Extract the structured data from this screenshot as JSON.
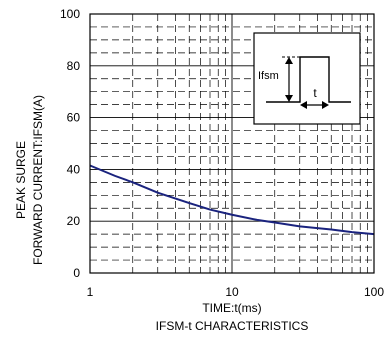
{
  "chart_data": {
    "type": "line",
    "title": "IFSM-t CHARACTERISTICS",
    "xlabel": "TIME:t(ms)",
    "ylabel_line1": "PEAK SURGE",
    "ylabel_line2": "FORWARD CURRENT:IFSM(A)",
    "x_scale": "log",
    "xlim": [
      1,
      100
    ],
    "ylim": [
      0,
      100
    ],
    "x_ticks": [
      "1",
      "10",
      "100"
    ],
    "y_ticks": [
      "0",
      "20",
      "40",
      "60",
      "80",
      "100"
    ],
    "grid": true,
    "series": [
      {
        "x": [
          1,
          1.5,
          2,
          3,
          5,
          7,
          10,
          15,
          20,
          30,
          50,
          70,
          100
        ],
        "y": [
          41.5,
          37.5,
          35,
          31,
          27,
          24.5,
          22.5,
          20.5,
          19.5,
          18,
          16.8,
          15.8,
          15
        ],
        "color": "#1a237e"
      }
    ],
    "inset": {
      "label_ifsm": "Ifsm",
      "label_t": "t"
    }
  }
}
